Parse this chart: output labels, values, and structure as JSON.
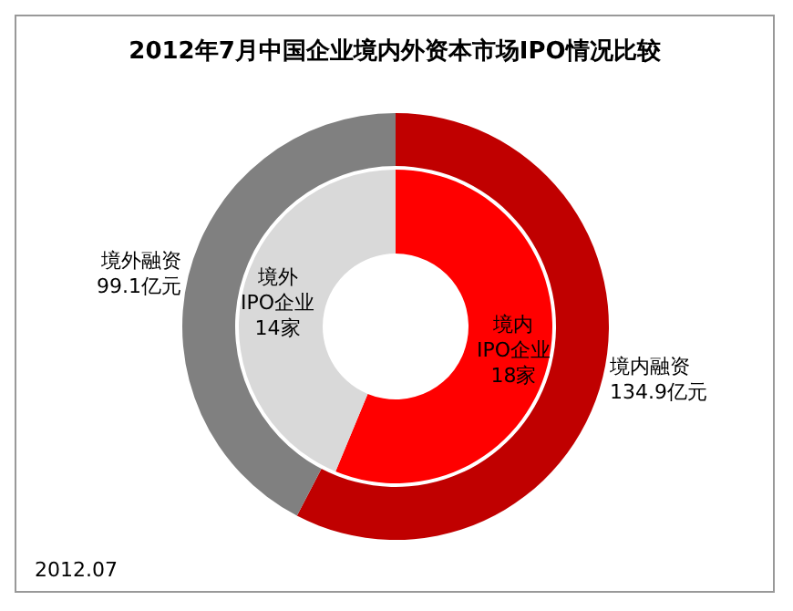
{
  "chart_data": [
    {
      "type": "donut",
      "title": "2012年7月中国企业境内外资本市场IPO情况比较",
      "categories": [
        "境内融资",
        "境外融资"
      ],
      "values": [
        134.9,
        99.1
      ],
      "colors": [
        "#c00000",
        "#808080"
      ],
      "value_labels": [
        "134.9亿元",
        "99.1亿元"
      ],
      "legend": false,
      "annotations": [
        "2012.07"
      ]
    },
    {
      "type": "donut",
      "categories": [
        "境内\nIPO企业",
        "境外\nIPO企业"
      ],
      "values": [
        18,
        14
      ],
      "colors": [
        "#ff0000",
        "#d9d9d9"
      ],
      "value_labels": [
        "18家",
        "14家"
      ],
      "legend": false
    }
  ]
}
